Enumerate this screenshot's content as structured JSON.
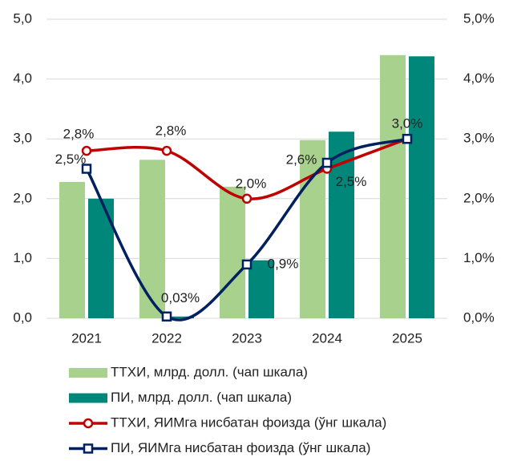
{
  "chart_data": {
    "type": "bar_line",
    "categories": [
      "2021",
      "2022",
      "2023",
      "2024",
      "2025"
    ],
    "ylim": [
      0,
      5
    ],
    "yticks": [
      {
        "value": 0,
        "label": "0,0"
      },
      {
        "value": 1,
        "label": "1,0"
      },
      {
        "value": 2,
        "label": "2,0"
      },
      {
        "value": 3,
        "label": "3,0"
      },
      {
        "value": 4,
        "label": "4,0"
      },
      {
        "value": 5,
        "label": "5,0"
      }
    ],
    "y2lim": [
      0,
      5
    ],
    "y2ticks": [
      {
        "value": 0,
        "label": "0,0%"
      },
      {
        "value": 1,
        "label": "1,0%"
      },
      {
        "value": 2,
        "label": "2,0%"
      },
      {
        "value": 3,
        "label": "3,0%"
      },
      {
        "value": 4,
        "label": "4,0%"
      },
      {
        "value": 5,
        "label": "5,0%"
      }
    ],
    "grid": true,
    "legend": "bottom",
    "series": [
      {
        "name": "ТТХИ, млрд. долл. (чап шкала)",
        "type": "bar",
        "color": "#a9d18e",
        "values": [
          2.28,
          2.65,
          2.2,
          2.98,
          4.4
        ]
      },
      {
        "name": "ПИ, млрд. долл. (чап шкала)",
        "type": "bar",
        "color": "#00877a",
        "values": [
          2.0,
          0.03,
          0.97,
          3.12,
          4.38
        ]
      },
      {
        "name": "ТТХИ, ЯИМга нисбатан фоизда (ўнг шкала)",
        "type": "line",
        "axis": "y2",
        "marker": "circle",
        "color": "#c00000",
        "values": [
          2.8,
          2.8,
          2.0,
          2.5,
          3.0
        ],
        "value_labels": [
          "2,8%",
          "2,8%",
          "2,0%",
          "2,5%",
          "3,0%"
        ]
      },
      {
        "name": "ПИ, ЯИМга нисбатан фоизда (ўнг шкала)",
        "type": "line",
        "axis": "y2",
        "marker": "square",
        "color": "#002060",
        "values": [
          2.5,
          0.03,
          0.9,
          2.6,
          3.0
        ],
        "value_labels": [
          "2,5%",
          "0,03%",
          "0,9%",
          "2,6%",
          null
        ]
      }
    ]
  }
}
